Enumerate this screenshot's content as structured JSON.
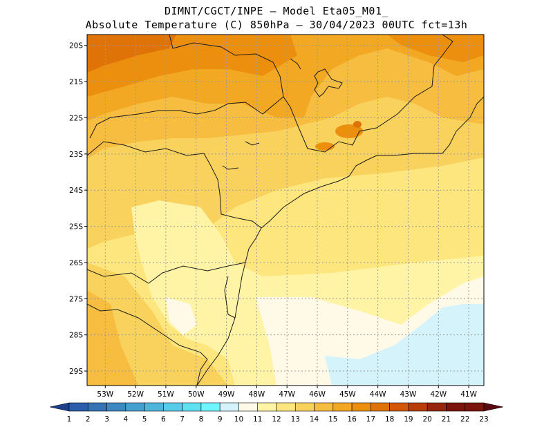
{
  "header": {
    "line1": "DIMNT/CGCT/INPE –  Model Eta05_M01_",
    "line2": "Absolute Temperature (C) 850hPa –  30/04/2023 00UTC fct=13h"
  },
  "map": {
    "lat_ticks": [
      "20S",
      "21S",
      "22S",
      "23S",
      "24S",
      "25S",
      "26S",
      "27S",
      "28S",
      "29S"
    ],
    "lon_ticks": [
      "53W",
      "52W",
      "51W",
      "50W",
      "49W",
      "48W",
      "47W",
      "46W",
      "45W",
      "44W",
      "43W",
      "42W",
      "41W"
    ],
    "lon_range": [
      -53.6,
      -40.5
    ],
    "lat_range": [
      -29.4,
      -19.7
    ],
    "colorbar": {
      "labels": [
        "1",
        "2",
        "3",
        "4",
        "5",
        "6",
        "7",
        "8",
        "9",
        "10",
        "11",
        "12",
        "13",
        "14",
        "15",
        "16",
        "17",
        "18",
        "19",
        "20",
        "21",
        "22",
        "23"
      ],
      "colors": [
        "#1c3f8e",
        "#2a5ea8",
        "#3474b5",
        "#3d88c2",
        "#46a0cf",
        "#4eb6dc",
        "#56cce8",
        "#5ee2f2",
        "#6ef5ff",
        "#d4f3fb",
        "#fff9e7",
        "#fff4a6",
        "#fde67d",
        "#f9d25d",
        "#f6bd40",
        "#f2a822",
        "#ec8f0f",
        "#e07308",
        "#d25707",
        "#b83d09",
        "#97270c",
        "#7a150e",
        "#5a0a0e"
      ]
    }
  }
}
